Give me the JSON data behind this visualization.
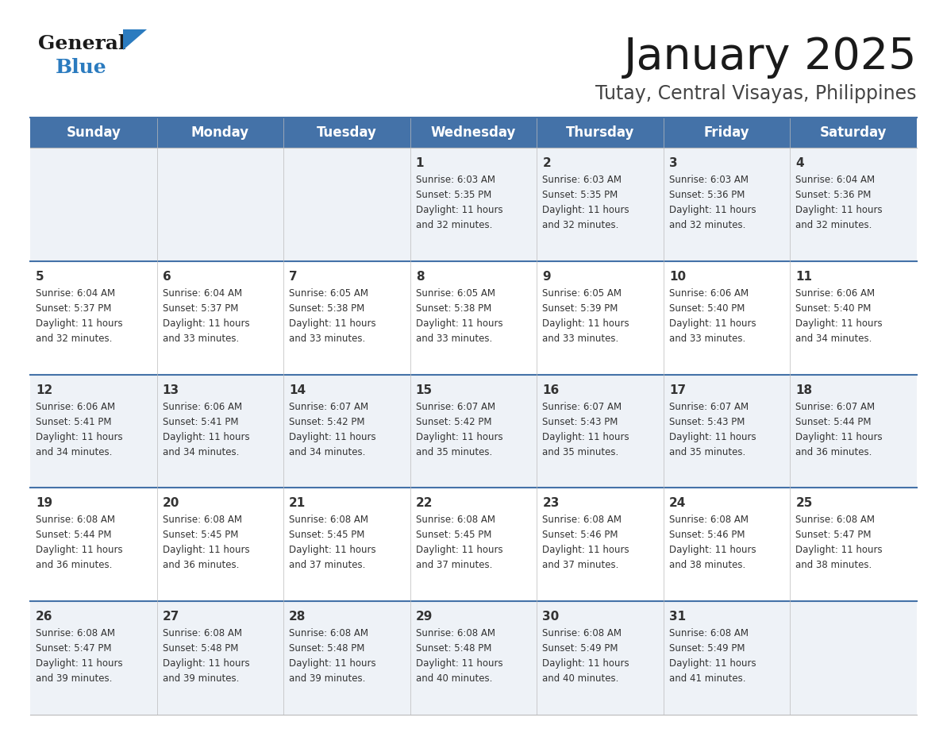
{
  "title": "January 2025",
  "subtitle": "Tutay, Central Visayas, Philippines",
  "header_color": "#4472a8",
  "header_text_color": "#ffffff",
  "days_of_week": [
    "Sunday",
    "Monday",
    "Tuesday",
    "Wednesday",
    "Thursday",
    "Friday",
    "Saturday"
  ],
  "background_color": "#ffffff",
  "row_line_color": "#4472a8",
  "text_color": "#333333",
  "logo_general_color": "#1a1a1a",
  "logo_blue_color": "#2b7bbf",
  "logo_triangle_color": "#2b7bbf",
  "calendar_data": [
    [
      {
        "day": "",
        "sunrise": "",
        "sunset": "",
        "daylight_h": "",
        "daylight_m": ""
      },
      {
        "day": "",
        "sunrise": "",
        "sunset": "",
        "daylight_h": "",
        "daylight_m": ""
      },
      {
        "day": "",
        "sunrise": "",
        "sunset": "",
        "daylight_h": "",
        "daylight_m": ""
      },
      {
        "day": "1",
        "sunrise": "6:03 AM",
        "sunset": "5:35 PM",
        "daylight_h": "11",
        "daylight_m": "32"
      },
      {
        "day": "2",
        "sunrise": "6:03 AM",
        "sunset": "5:35 PM",
        "daylight_h": "11",
        "daylight_m": "32"
      },
      {
        "day": "3",
        "sunrise": "6:03 AM",
        "sunset": "5:36 PM",
        "daylight_h": "11",
        "daylight_m": "32"
      },
      {
        "day": "4",
        "sunrise": "6:04 AM",
        "sunset": "5:36 PM",
        "daylight_h": "11",
        "daylight_m": "32"
      }
    ],
    [
      {
        "day": "5",
        "sunrise": "6:04 AM",
        "sunset": "5:37 PM",
        "daylight_h": "11",
        "daylight_m": "32"
      },
      {
        "day": "6",
        "sunrise": "6:04 AM",
        "sunset": "5:37 PM",
        "daylight_h": "11",
        "daylight_m": "33"
      },
      {
        "day": "7",
        "sunrise": "6:05 AM",
        "sunset": "5:38 PM",
        "daylight_h": "11",
        "daylight_m": "33"
      },
      {
        "day": "8",
        "sunrise": "6:05 AM",
        "sunset": "5:38 PM",
        "daylight_h": "11",
        "daylight_m": "33"
      },
      {
        "day": "9",
        "sunrise": "6:05 AM",
        "sunset": "5:39 PM",
        "daylight_h": "11",
        "daylight_m": "33"
      },
      {
        "day": "10",
        "sunrise": "6:06 AM",
        "sunset": "5:40 PM",
        "daylight_h": "11",
        "daylight_m": "33"
      },
      {
        "day": "11",
        "sunrise": "6:06 AM",
        "sunset": "5:40 PM",
        "daylight_h": "11",
        "daylight_m": "34"
      }
    ],
    [
      {
        "day": "12",
        "sunrise": "6:06 AM",
        "sunset": "5:41 PM",
        "daylight_h": "11",
        "daylight_m": "34"
      },
      {
        "day": "13",
        "sunrise": "6:06 AM",
        "sunset": "5:41 PM",
        "daylight_h": "11",
        "daylight_m": "34"
      },
      {
        "day": "14",
        "sunrise": "6:07 AM",
        "sunset": "5:42 PM",
        "daylight_h": "11",
        "daylight_m": "34"
      },
      {
        "day": "15",
        "sunrise": "6:07 AM",
        "sunset": "5:42 PM",
        "daylight_h": "11",
        "daylight_m": "35"
      },
      {
        "day": "16",
        "sunrise": "6:07 AM",
        "sunset": "5:43 PM",
        "daylight_h": "11",
        "daylight_m": "35"
      },
      {
        "day": "17",
        "sunrise": "6:07 AM",
        "sunset": "5:43 PM",
        "daylight_h": "11",
        "daylight_m": "35"
      },
      {
        "day": "18",
        "sunrise": "6:07 AM",
        "sunset": "5:44 PM",
        "daylight_h": "11",
        "daylight_m": "36"
      }
    ],
    [
      {
        "day": "19",
        "sunrise": "6:08 AM",
        "sunset": "5:44 PM",
        "daylight_h": "11",
        "daylight_m": "36"
      },
      {
        "day": "20",
        "sunrise": "6:08 AM",
        "sunset": "5:45 PM",
        "daylight_h": "11",
        "daylight_m": "36"
      },
      {
        "day": "21",
        "sunrise": "6:08 AM",
        "sunset": "5:45 PM",
        "daylight_h": "11",
        "daylight_m": "37"
      },
      {
        "day": "22",
        "sunrise": "6:08 AM",
        "sunset": "5:45 PM",
        "daylight_h": "11",
        "daylight_m": "37"
      },
      {
        "day": "23",
        "sunrise": "6:08 AM",
        "sunset": "5:46 PM",
        "daylight_h": "11",
        "daylight_m": "37"
      },
      {
        "day": "24",
        "sunrise": "6:08 AM",
        "sunset": "5:46 PM",
        "daylight_h": "11",
        "daylight_m": "38"
      },
      {
        "day": "25",
        "sunrise": "6:08 AM",
        "sunset": "5:47 PM",
        "daylight_h": "11",
        "daylight_m": "38"
      }
    ],
    [
      {
        "day": "26",
        "sunrise": "6:08 AM",
        "sunset": "5:47 PM",
        "daylight_h": "11",
        "daylight_m": "39"
      },
      {
        "day": "27",
        "sunrise": "6:08 AM",
        "sunset": "5:48 PM",
        "daylight_h": "11",
        "daylight_m": "39"
      },
      {
        "day": "28",
        "sunrise": "6:08 AM",
        "sunset": "5:48 PM",
        "daylight_h": "11",
        "daylight_m": "39"
      },
      {
        "day": "29",
        "sunrise": "6:08 AM",
        "sunset": "5:48 PM",
        "daylight_h": "11",
        "daylight_m": "40"
      },
      {
        "day": "30",
        "sunrise": "6:08 AM",
        "sunset": "5:49 PM",
        "daylight_h": "11",
        "daylight_m": "40"
      },
      {
        "day": "31",
        "sunrise": "6:08 AM",
        "sunset": "5:49 PM",
        "daylight_h": "11",
        "daylight_m": "41"
      },
      {
        "day": "",
        "sunrise": "",
        "sunset": "",
        "daylight_h": "",
        "daylight_m": ""
      }
    ]
  ]
}
